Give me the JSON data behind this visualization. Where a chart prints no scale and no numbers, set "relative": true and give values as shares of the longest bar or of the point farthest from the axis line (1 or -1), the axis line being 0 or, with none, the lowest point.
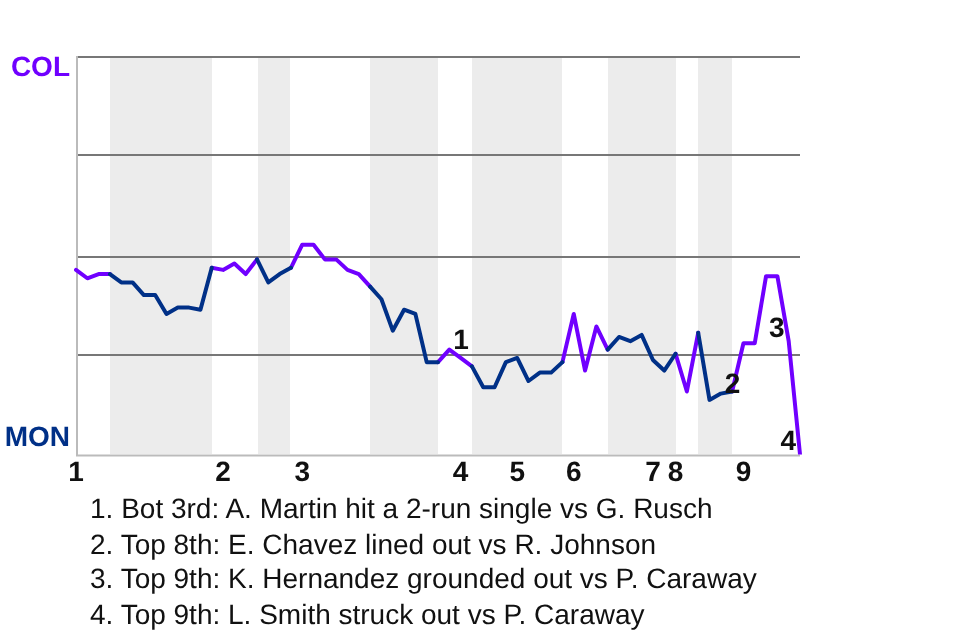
{
  "chart_data": {
    "type": "line",
    "categories": [
      "1",
      null,
      null,
      null,
      null,
      null,
      null,
      null,
      null,
      null,
      null,
      null,
      null,
      "2",
      null,
      null,
      null,
      null,
      null,
      null,
      "3",
      null,
      null,
      null,
      null,
      null,
      null,
      null,
      null,
      null,
      null,
      null,
      null,
      null,
      "4",
      null,
      null,
      null,
      null,
      "5",
      null,
      null,
      null,
      null,
      "6",
      null,
      null,
      null,
      null,
      null,
      null,
      "7",
      null,
      "8",
      null,
      null,
      null,
      null,
      null,
      "9",
      null,
      null,
      null,
      null,
      null
    ],
    "relative": true,
    "series": [
      {
        "name": "COL",
        "color": "#7000ff",
        "values": [
          0.88,
          0.84,
          0.86,
          0.86,
          null,
          null,
          null,
          null,
          null,
          null,
          null,
          null,
          0.89,
          0.88,
          0.91,
          0.86,
          0.93,
          null,
          null,
          0.89,
          1,
          1,
          0.93,
          0.93,
          0.88,
          0.86,
          0.8,
          null,
          null,
          null,
          null,
          null,
          0.44,
          0.5,
          0.46,
          0.42,
          null,
          null,
          null,
          null,
          null,
          null,
          null,
          0.44,
          0.67,
          0.4,
          0.61,
          0.5,
          null,
          null,
          null,
          null,
          null,
          0.48,
          0.3,
          0.58,
          null,
          null,
          0.3,
          0.53,
          0.53,
          0.85,
          0.85,
          0.54,
          0
        ]
      },
      {
        "name": "MON",
        "color": "#003087",
        "values": [
          null,
          null,
          null,
          0.86,
          0.82,
          0.82,
          0.76,
          0.76,
          0.67,
          0.7,
          0.7,
          0.69,
          0.89,
          null,
          null,
          null,
          0.93,
          0.82,
          0.86,
          0.89,
          null,
          null,
          null,
          null,
          null,
          null,
          0.8,
          0.74,
          0.59,
          0.69,
          0.67,
          0.44,
          0.44,
          null,
          null,
          0.42,
          0.32,
          0.32,
          0.44,
          0.46,
          0.35,
          0.39,
          0.39,
          0.44,
          null,
          null,
          null,
          0.5,
          0.56,
          0.54,
          0.57,
          0.45,
          0.4,
          0.48,
          null,
          0.58,
          0.26,
          0.29,
          0.3,
          null,
          null,
          null,
          null,
          null,
          null
        ]
      }
    ],
    "ref_lines": [
      {
        "axis": "y",
        "value": 0.48,
        "color": "#777777"
      },
      {
        "axis": "y",
        "value": 0.95,
        "color": "#777777"
      },
      {
        "axis": "y",
        "value": 1.43,
        "color": "#777777"
      },
      {
        "axis": "y",
        "value": 1.9,
        "color": "#777777"
      }
    ],
    "legend": "left",
    "marker": "none",
    "line_style": "solid",
    "annotations": [
      {
        "text": "1",
        "y": 0.5
      },
      {
        "text": "2",
        "y": 0.29
      },
      {
        "text": "3",
        "y": 0.54
      },
      {
        "text": "4",
        "y": 0
      },
      "1. Bot 3rd: A. Martin hit a 2-run single vs G. Rusch",
      "2. Top 8th: E. Chavez lined out vs R. Johnson",
      "3. Top 9th: K. Hernandez grounded out vs P. Caraway",
      "4. Top 9th: L. Smith struck out vs P. Caraway"
    ]
  }
}
